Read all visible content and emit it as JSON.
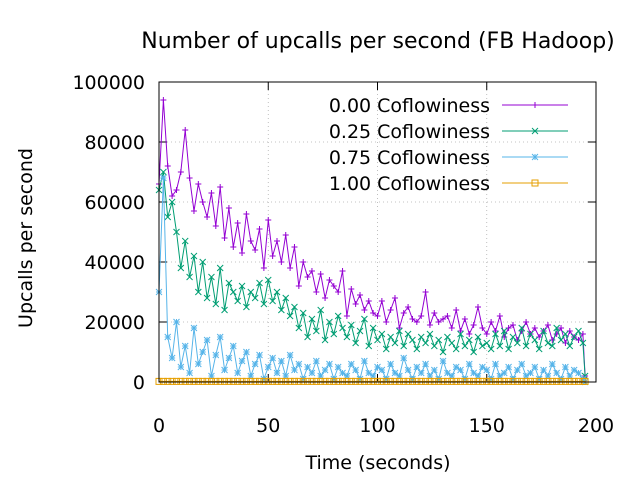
{
  "chart_data": {
    "type": "line",
    "title": "Number of upcalls per second (FB Hadoop)",
    "xlabel": "Time (seconds)",
    "ylabel": "Upcalls per second",
    "xlim": [
      0,
      200
    ],
    "ylim": [
      0,
      100000
    ],
    "xticks": [
      0,
      50,
      100,
      150,
      200
    ],
    "yticks": [
      0,
      20000,
      40000,
      60000,
      80000,
      100000
    ],
    "xtick_labels": [
      "0",
      "50",
      "100",
      "150",
      "200"
    ],
    "ytick_labels": [
      "0",
      "20000",
      "40000",
      "60000",
      "80000",
      "100000"
    ],
    "grid": true,
    "legend_position": "top-right",
    "series": [
      {
        "name": "0.00 Coflowiness",
        "color": "#9400d3",
        "marker": "plus",
        "x": [
          0,
          2,
          4,
          6,
          8,
          10,
          12,
          14,
          16,
          18,
          20,
          22,
          24,
          26,
          28,
          30,
          32,
          34,
          36,
          38,
          40,
          42,
          44,
          46,
          48,
          50,
          52,
          54,
          56,
          58,
          60,
          62,
          64,
          66,
          68,
          70,
          72,
          74,
          76,
          78,
          80,
          82,
          84,
          86,
          88,
          90,
          92,
          94,
          96,
          98,
          100,
          102,
          104,
          106,
          108,
          110,
          112,
          114,
          116,
          118,
          120,
          122,
          124,
          126,
          128,
          130,
          132,
          134,
          136,
          138,
          140,
          142,
          144,
          146,
          148,
          150,
          152,
          154,
          156,
          158,
          160,
          162,
          164,
          166,
          168,
          170,
          172,
          174,
          176,
          178,
          180,
          182,
          184,
          186,
          188,
          190,
          192,
          194,
          195
        ],
        "y": [
          66000,
          94000,
          72000,
          62000,
          64000,
          70000,
          84000,
          68000,
          57000,
          66000,
          60000,
          55000,
          63000,
          52000,
          65000,
          48000,
          58000,
          45000,
          53000,
          43000,
          56000,
          47000,
          44000,
          51000,
          38000,
          54000,
          42000,
          47000,
          40000,
          49000,
          38000,
          45000,
          32000,
          40000,
          35000,
          37000,
          30000,
          36000,
          28000,
          34000,
          32000,
          30000,
          37000,
          22000,
          31000,
          26000,
          29000,
          24000,
          27000,
          23000,
          22000,
          27000,
          20000,
          24000,
          28000,
          18000,
          23000,
          25000,
          21000,
          20000,
          22000,
          30000,
          19000,
          23000,
          20000,
          21000,
          22000,
          18000,
          24000,
          17000,
          21000,
          16000,
          19000,
          25000,
          18000,
          16000,
          20000,
          17000,
          22000,
          15000,
          18000,
          19000,
          14000,
          17000,
          20000,
          16000,
          18000,
          15000,
          17000,
          19000,
          14000,
          16000,
          18000,
          13000,
          17000,
          15000,
          14000,
          16000,
          2000
        ]
      },
      {
        "name": "0.25 Coflowiness",
        "color": "#009e73",
        "marker": "cross",
        "x": [
          0,
          2,
          4,
          6,
          8,
          10,
          12,
          14,
          16,
          18,
          20,
          22,
          24,
          26,
          28,
          30,
          32,
          34,
          36,
          38,
          40,
          42,
          44,
          46,
          48,
          50,
          52,
          54,
          56,
          58,
          60,
          62,
          64,
          66,
          68,
          70,
          72,
          74,
          76,
          78,
          80,
          82,
          84,
          86,
          88,
          90,
          92,
          94,
          96,
          98,
          100,
          102,
          104,
          106,
          108,
          110,
          112,
          114,
          116,
          118,
          120,
          122,
          124,
          126,
          128,
          130,
          132,
          134,
          136,
          138,
          140,
          142,
          144,
          146,
          148,
          150,
          152,
          154,
          156,
          158,
          160,
          162,
          164,
          166,
          168,
          170,
          172,
          174,
          176,
          178,
          180,
          182,
          184,
          186,
          188,
          190,
          192,
          194,
          195
        ],
        "y": [
          64000,
          70000,
          55000,
          60000,
          50000,
          38000,
          47000,
          35000,
          42000,
          30000,
          40000,
          28000,
          35000,
          26000,
          38000,
          24000,
          33000,
          30000,
          27000,
          32000,
          25000,
          30000,
          28000,
          33000,
          26000,
          34000,
          27000,
          30000,
          24000,
          28000,
          22000,
          25000,
          18000,
          23000,
          15000,
          21000,
          17000,
          24000,
          14000,
          20000,
          16000,
          22000,
          18000,
          15000,
          19000,
          13000,
          17000,
          21000,
          12000,
          18000,
          14000,
          16000,
          11000,
          15000,
          13000,
          17000,
          12000,
          16000,
          14000,
          11000,
          15000,
          13000,
          16000,
          12000,
          14000,
          10000,
          15000,
          13000,
          11000,
          16000,
          12000,
          14000,
          10000,
          15000,
          12000,
          13000,
          11000,
          16000,
          12000,
          17000,
          11000,
          15000,
          13000,
          18000,
          12000,
          16000,
          14000,
          11000,
          17000,
          13000,
          12000,
          18000,
          14000,
          16000,
          12000,
          15000,
          17000,
          13000,
          2000
        ]
      },
      {
        "name": "0.75 Coflowiness",
        "color": "#56b4e9",
        "marker": "star",
        "x": [
          0,
          2,
          4,
          6,
          8,
          10,
          12,
          14,
          16,
          18,
          20,
          22,
          24,
          26,
          28,
          30,
          32,
          34,
          36,
          38,
          40,
          42,
          44,
          46,
          48,
          50,
          52,
          54,
          56,
          58,
          60,
          62,
          64,
          66,
          68,
          70,
          72,
          74,
          76,
          78,
          80,
          82,
          84,
          86,
          88,
          90,
          92,
          94,
          96,
          98,
          100,
          102,
          104,
          106,
          108,
          110,
          112,
          114,
          116,
          118,
          120,
          122,
          124,
          126,
          128,
          130,
          132,
          134,
          136,
          138,
          140,
          142,
          144,
          146,
          148,
          150,
          152,
          154,
          156,
          158,
          160,
          162,
          164,
          166,
          168,
          170,
          172,
          174,
          176,
          178,
          180,
          182,
          184,
          186,
          188,
          190,
          192,
          194,
          195
        ],
        "y": [
          30000,
          68000,
          15000,
          8000,
          20000,
          5000,
          12000,
          3000,
          18000,
          6000,
          10000,
          14000,
          2000,
          9000,
          15000,
          4000,
          8000,
          12000,
          3000,
          7000,
          10000,
          2000,
          6000,
          9000,
          1000,
          5000,
          8000,
          3000,
          7000,
          2000,
          9000,
          4000,
          6000,
          1000,
          5000,
          3000,
          7000,
          2000,
          4000,
          6000,
          1000,
          5000,
          3000,
          2000,
          6000,
          4000,
          1000,
          7000,
          3000,
          2000,
          5000,
          4000,
          1000,
          6000,
          3000,
          2000,
          8000,
          4000,
          1000,
          5000,
          3000,
          6000,
          2000,
          4000,
          1000,
          7000,
          3000,
          2000,
          5000,
          4000,
          1000,
          6000,
          3000,
          2000,
          5000,
          4000,
          1000,
          6000,
          2000,
          3000,
          5000,
          1000,
          4000,
          6000,
          2000,
          3000,
          5000,
          1000,
          4000,
          2000,
          6000,
          3000,
          1000,
          5000,
          2000,
          4000,
          3000,
          1000,
          0
        ]
      },
      {
        "name": "1.00 Coflowiness",
        "color": "#e69f00",
        "marker": "square",
        "x": [
          0,
          2,
          4,
          6,
          8,
          10,
          12,
          14,
          16,
          18,
          20,
          22,
          24,
          26,
          28,
          30,
          32,
          34,
          36,
          38,
          40,
          42,
          44,
          46,
          48,
          50,
          52,
          54,
          56,
          58,
          60,
          62,
          64,
          66,
          68,
          70,
          72,
          74,
          76,
          78,
          80,
          82,
          84,
          86,
          88,
          90,
          92,
          94,
          96,
          98,
          100,
          102,
          104,
          106,
          108,
          110,
          112,
          114,
          116,
          118,
          120,
          122,
          124,
          126,
          128,
          130,
          132,
          134,
          136,
          138,
          140,
          142,
          144,
          146,
          148,
          150,
          152,
          154,
          156,
          158,
          160,
          162,
          164,
          166,
          168,
          170,
          172,
          174,
          176,
          178,
          180,
          182,
          184,
          186,
          188,
          190,
          192,
          194,
          195
        ],
        "y": [
          200,
          200,
          200,
          200,
          200,
          200,
          200,
          200,
          200,
          200,
          200,
          200,
          200,
          200,
          200,
          200,
          200,
          200,
          200,
          200,
          200,
          200,
          200,
          200,
          200,
          200,
          200,
          200,
          200,
          200,
          200,
          200,
          200,
          200,
          200,
          200,
          200,
          200,
          200,
          200,
          200,
          200,
          200,
          200,
          200,
          200,
          200,
          200,
          200,
          200,
          200,
          200,
          200,
          200,
          200,
          200,
          200,
          200,
          200,
          200,
          200,
          200,
          200,
          200,
          200,
          200,
          200,
          200,
          200,
          200,
          200,
          200,
          200,
          200,
          200,
          200,
          200,
          200,
          200,
          200,
          200,
          200,
          200,
          200,
          200,
          200,
          200,
          200,
          200,
          200,
          200,
          200,
          200,
          200,
          200,
          200,
          200,
          200,
          200
        ]
      }
    ]
  }
}
